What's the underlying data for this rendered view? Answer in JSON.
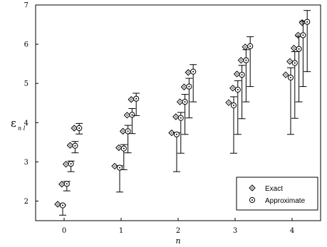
{
  "chart_data": {
    "type": "scatter",
    "xlabel": "n",
    "ylabel_main": "ε",
    "ylabel_sub": "n l",
    "xlim": [
      -0.5,
      4.5
    ],
    "ylim": [
      1.5,
      7
    ],
    "x_ticks": [
      0,
      1,
      2,
      3,
      4
    ],
    "x_tick_labels": [
      "0",
      "1",
      "2",
      "3",
      "4"
    ],
    "y_ticks": [
      2,
      3,
      4,
      5,
      6,
      7
    ],
    "y_tick_labels": [
      "2",
      "3",
      "4",
      "5",
      "6",
      "7"
    ],
    "legend_position": "bottom-right",
    "series": [
      {
        "name": "Exact",
        "marker": "diamond",
        "points": [
          {
            "x": 0,
            "y": 1.92
          },
          {
            "x": 0,
            "y": 2.43
          },
          {
            "x": 0,
            "y": 2.94
          },
          {
            "x": 0,
            "y": 3.42
          },
          {
            "x": 0,
            "y": 3.86
          },
          {
            "x": 1,
            "y": 2.89
          },
          {
            "x": 1,
            "y": 3.36
          },
          {
            "x": 1,
            "y": 3.78
          },
          {
            "x": 1,
            "y": 4.19
          },
          {
            "x": 1,
            "y": 4.59
          },
          {
            "x": 2,
            "y": 3.74
          },
          {
            "x": 2,
            "y": 4.15
          },
          {
            "x": 2,
            "y": 4.53
          },
          {
            "x": 2,
            "y": 4.91
          },
          {
            "x": 2,
            "y": 5.28
          },
          {
            "x": 3,
            "y": 4.51
          },
          {
            "x": 3,
            "y": 4.88
          },
          {
            "x": 3,
            "y": 5.24
          },
          {
            "x": 3,
            "y": 5.59
          },
          {
            "x": 3,
            "y": 5.93
          },
          {
            "x": 4,
            "y": 5.22
          },
          {
            "x": 4,
            "y": 5.56
          },
          {
            "x": 4,
            "y": 5.9
          },
          {
            "x": 4,
            "y": 6.23
          },
          {
            "x": 4,
            "y": 6.55
          }
        ]
      },
      {
        "name": "Approximate",
        "marker": "circle-dot",
        "points": [
          {
            "x": 0,
            "y": 1.89,
            "lo": 1.64,
            "hi": 1.9
          },
          {
            "x": 0,
            "y": 2.44,
            "lo": 2.26,
            "hi": 2.5
          },
          {
            "x": 0,
            "y": 2.95,
            "lo": 2.75,
            "hi": 3.02
          },
          {
            "x": 0,
            "y": 3.41,
            "lo": 3.23,
            "hi": 3.52
          },
          {
            "x": 0,
            "y": 3.86,
            "lo": 3.71,
            "hi": 3.98
          },
          {
            "x": 1,
            "y": 2.85,
            "lo": 2.23,
            "hi": 2.9
          },
          {
            "x": 1,
            "y": 3.34,
            "lo": 2.8,
            "hi": 3.44
          },
          {
            "x": 1,
            "y": 3.78,
            "lo": 3.23,
            "hi": 3.93
          },
          {
            "x": 1,
            "y": 4.2,
            "lo": 3.72,
            "hi": 4.36
          },
          {
            "x": 1,
            "y": 4.61,
            "lo": 4.18,
            "hi": 4.75
          },
          {
            "x": 2,
            "y": 3.7,
            "lo": 2.75,
            "hi": 3.74
          },
          {
            "x": 2,
            "y": 4.12,
            "lo": 3.22,
            "hi": 4.26
          },
          {
            "x": 2,
            "y": 4.53,
            "lo": 3.7,
            "hi": 4.72
          },
          {
            "x": 2,
            "y": 4.92,
            "lo": 4.12,
            "hi": 5.13
          },
          {
            "x": 2,
            "y": 5.3,
            "lo": 4.53,
            "hi": 5.48
          },
          {
            "x": 3,
            "y": 4.44,
            "lo": 3.22,
            "hi": 4.66
          },
          {
            "x": 3,
            "y": 4.84,
            "lo": 3.7,
            "hi": 5.07
          },
          {
            "x": 3,
            "y": 5.22,
            "lo": 4.1,
            "hi": 5.46
          },
          {
            "x": 3,
            "y": 5.59,
            "lo": 4.53,
            "hi": 5.86
          },
          {
            "x": 3,
            "y": 5.95,
            "lo": 4.92,
            "hi": 6.19
          },
          {
            "x": 4,
            "y": 5.15,
            "lo": 3.7,
            "hi": 5.4
          },
          {
            "x": 4,
            "y": 5.52,
            "lo": 4.11,
            "hi": 5.81
          },
          {
            "x": 4,
            "y": 5.88,
            "lo": 4.53,
            "hi": 6.2
          },
          {
            "x": 4,
            "y": 6.23,
            "lo": 4.92,
            "hi": 6.59
          },
          {
            "x": 4,
            "y": 6.57,
            "lo": 5.3,
            "hi": 6.86
          }
        ]
      }
    ]
  }
}
